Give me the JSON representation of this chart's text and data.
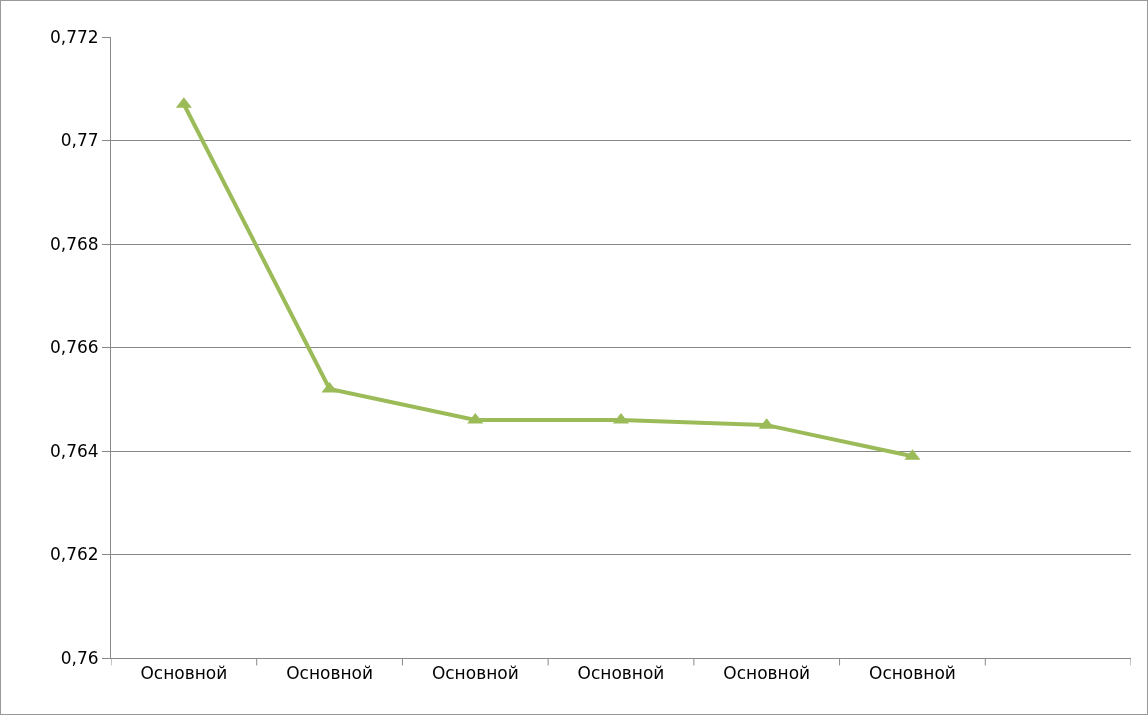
{
  "chart_data": {
    "type": "line",
    "categories": [
      "Основной",
      "Основной",
      "Основной",
      "Основной",
      "Основной",
      "Основной"
    ],
    "series": [
      {
        "color": "#9bbb59",
        "values": [
          0.7707,
          0.7652,
          0.7646,
          0.7646,
          0.7645,
          0.7639
        ]
      }
    ],
    "ylim": [
      0.76,
      0.772
    ],
    "yticks": [
      {
        "value": 0.76,
        "label": "0,76"
      },
      {
        "value": 0.762,
        "label": "0,762"
      },
      {
        "value": 0.764,
        "label": "0,764"
      },
      {
        "value": 0.766,
        "label": "0,766"
      },
      {
        "value": 0.768,
        "label": "0,768"
      },
      {
        "value": 0.77,
        "label": "0,77"
      },
      {
        "value": 0.772,
        "label": "0,772"
      }
    ],
    "grid": "y",
    "legend": false,
    "marker": "triangle",
    "line_style": "solid"
  }
}
